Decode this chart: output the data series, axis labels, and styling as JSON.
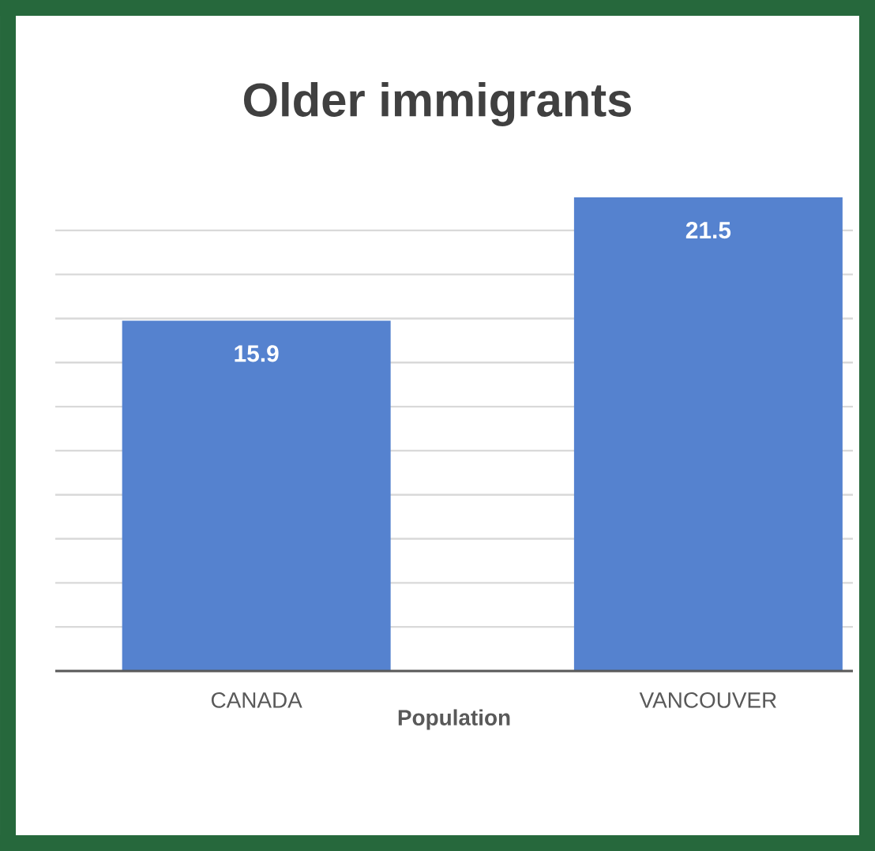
{
  "chart_data": {
    "type": "bar",
    "title": "Older immigrants",
    "xlabel": "Population",
    "categories": [
      "CANADA",
      "VANCOUVER"
    ],
    "values": [
      15.9,
      21.5
    ],
    "color": "#5582cf",
    "grid": "y",
    "data_labels": true,
    "tick_labels": "x"
  }
}
